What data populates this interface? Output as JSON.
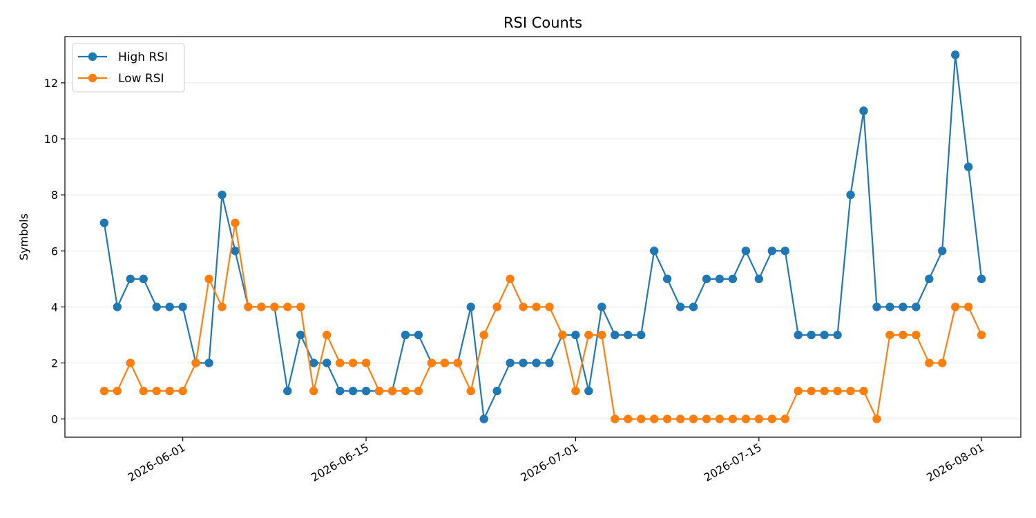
{
  "chart_data": {
    "type": "line",
    "title": "RSI Counts",
    "xlabel": "",
    "ylabel": "Symbols",
    "x_ticks": [
      "2026-06-01",
      "2026-06-15",
      "2026-07-01",
      "2026-07-15",
      "2026-08-01"
    ],
    "y_ticks": [
      0,
      2,
      4,
      6,
      8,
      10,
      12
    ],
    "ylim": [
      -0.65,
      13.65
    ],
    "xlim": [
      "2026-05-23",
      "2026-08-04"
    ],
    "grid": "horizontal",
    "legend": "top-left",
    "x": [
      "2026-05-26",
      "2026-05-27",
      "2026-05-28",
      "2026-05-29",
      "2026-05-30",
      "2026-05-31",
      "2026-06-01",
      "2026-06-02",
      "2026-06-03",
      "2026-06-04",
      "2026-06-05",
      "2026-06-06",
      "2026-06-07",
      "2026-06-08",
      "2026-06-09",
      "2026-06-10",
      "2026-06-11",
      "2026-06-12",
      "2026-06-13",
      "2026-06-14",
      "2026-06-15",
      "2026-06-16",
      "2026-06-17",
      "2026-06-18",
      "2026-06-19",
      "2026-06-20",
      "2026-06-21",
      "2026-06-22",
      "2026-06-23",
      "2026-06-24",
      "2026-06-25",
      "2026-06-26",
      "2026-06-27",
      "2026-06-28",
      "2026-06-29",
      "2026-06-30",
      "2026-07-01",
      "2026-07-02",
      "2026-07-03",
      "2026-07-04",
      "2026-07-05",
      "2026-07-06",
      "2026-07-07",
      "2026-07-08",
      "2026-07-09",
      "2026-07-10",
      "2026-07-11",
      "2026-07-12",
      "2026-07-13",
      "2026-07-14",
      "2026-07-15",
      "2026-07-16",
      "2026-07-17",
      "2026-07-18",
      "2026-07-19",
      "2026-07-20",
      "2026-07-21",
      "2026-07-22",
      "2026-07-23",
      "2026-07-24",
      "2026-07-25",
      "2026-07-26",
      "2026-07-27",
      "2026-07-28",
      "2026-07-29",
      "2026-07-30",
      "2026-07-31",
      "2026-08-01"
    ],
    "series": [
      {
        "name": "High RSI",
        "color": "#1f77b4",
        "values": [
          7,
          4,
          5,
          5,
          4,
          4,
          4,
          2,
          2,
          8,
          6,
          4,
          4,
          4,
          1,
          3,
          2,
          2,
          1,
          1,
          1,
          1,
          1,
          3,
          3,
          2,
          2,
          2,
          4,
          0,
          1,
          2,
          2,
          2,
          2,
          3,
          3,
          1,
          4,
          3,
          3,
          3,
          6,
          5,
          4,
          4,
          5,
          5,
          5,
          6,
          5,
          6,
          6,
          3,
          3,
          3,
          3,
          8,
          11,
          4,
          4,
          4,
          4,
          5,
          6,
          13,
          9,
          5
        ]
      },
      {
        "name": "Low RSI",
        "color": "#ff7f0e",
        "values": [
          1,
          1,
          2,
          1,
          1,
          1,
          1,
          2,
          5,
          4,
          7,
          4,
          4,
          4,
          4,
          4,
          1,
          3,
          2,
          2,
          2,
          1,
          1,
          1,
          1,
          2,
          2,
          2,
          1,
          3,
          4,
          5,
          4,
          4,
          4,
          3,
          1,
          3,
          3,
          0,
          0,
          0,
          0,
          0,
          0,
          0,
          0,
          0,
          0,
          0,
          0,
          0,
          0,
          1,
          1,
          1,
          1,
          1,
          1,
          0,
          3,
          3,
          3,
          2,
          2,
          4,
          4,
          3
        ]
      }
    ]
  }
}
